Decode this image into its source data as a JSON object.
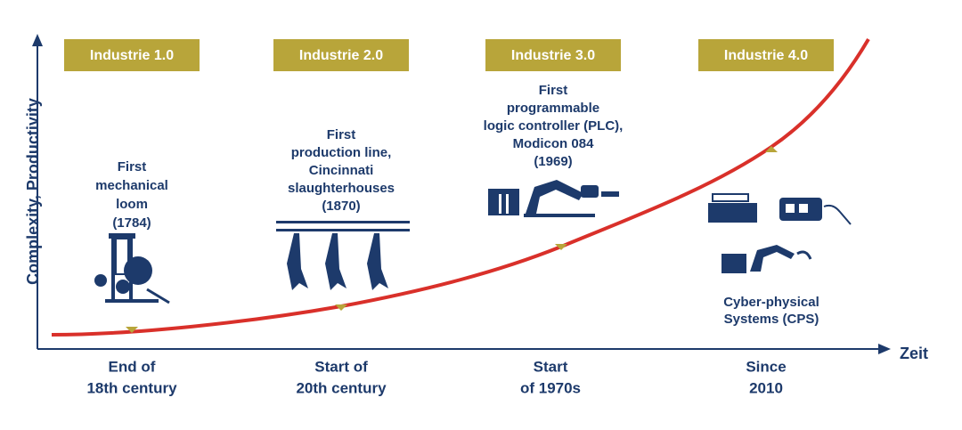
{
  "axis": {
    "y_label": "Complexity, Productivity",
    "x_label": "Zeit"
  },
  "stages": [
    {
      "label": "Industrie 1.0",
      "description": [
        "First",
        "mechanical",
        "loom",
        "(1784)"
      ],
      "period": [
        "End of",
        "18th century"
      ]
    },
    {
      "label": "Industrie 2.0",
      "description": [
        "First",
        "production line,",
        "Cincinnati",
        "slaughterhouses",
        "(1870)"
      ],
      "period": [
        "Start of",
        "20th century"
      ]
    },
    {
      "label": "Industrie 3.0",
      "description": [
        "First",
        "programmable",
        "logic controller (PLC),",
        "Modicon 084",
        "(1969)"
      ],
      "period": [
        "Start",
        "of 1970s"
      ]
    },
    {
      "label": "Industrie 4.0",
      "description": [
        "Cyber-physical",
        "Systems (CPS)"
      ],
      "period": [
        "Since",
        "2010"
      ]
    }
  ]
}
